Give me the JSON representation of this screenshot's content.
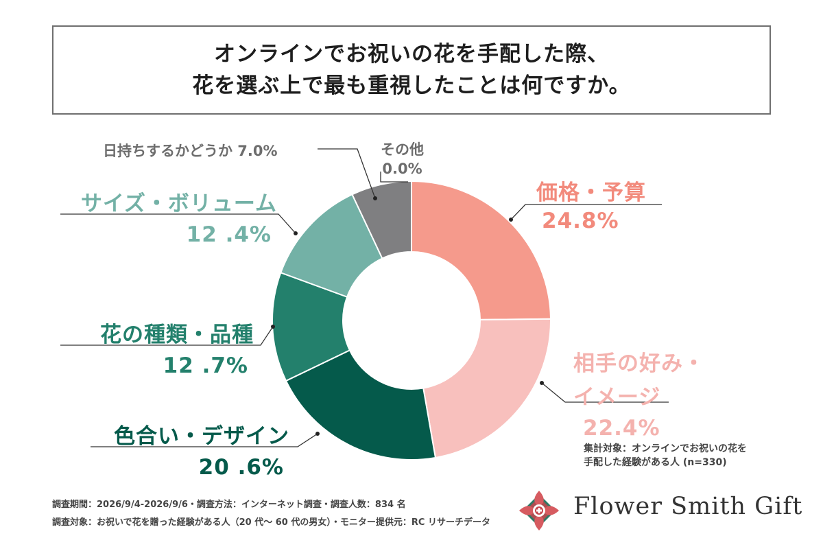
{
  "title": {
    "line1": "オンラインでお祝いの花を手配した際、",
    "line2": "花を選ぶ上で最も重視したことは何ですか。"
  },
  "chart_data": {
    "type": "pie",
    "variant": "donut",
    "categories": [
      "価格・予算",
      "相手の好み・イメージ",
      "色合い・デザイン",
      "花の種類・品種",
      "サイズ・ボリューム",
      "日持ちするかどうか",
      "その他"
    ],
    "values": [
      24.8,
      22.4,
      20.6,
      12.7,
      12.4,
      7.0,
      0.0
    ],
    "colors": [
      "#f59a8c",
      "#f8c0bd",
      "#055a4b",
      "#23806c",
      "#73b1a6",
      "#7f7f81",
      "#bbbbbb"
    ]
  },
  "labels": {
    "price_name": "価格・予算",
    "price_value": "24.8%",
    "pref_name_line1": "相手の好み・",
    "pref_name_line2": "イメージ",
    "pref_value": "22.4%",
    "design_name": "色合い・デザイン",
    "design_value": "20 .6%",
    "kind_name": "花の種類・品種",
    "kind_value": "12 .7%",
    "size_name": "サイズ・ボリューム",
    "size_value": "12 .4%",
    "life_label": "日持ちするかどうか 7.0%",
    "other_name": "その他",
    "other_value": "0.0%"
  },
  "note": {
    "line1": "集計対象：オンラインでお祝いの花を",
    "line2": "手配した経験がある人 (n=330)"
  },
  "footer": {
    "line1": "調査期間：2026/9/4-2026/9/6・調査方法：インターネット調査・調査人数：834 名",
    "line2": "調査対象：お祝いで花を贈った経験がある人（20 代～ 60 代の男女）・モニター提供元：RC リサーチデータ"
  },
  "brand": {
    "name": "Flower Smith Gift",
    "logo_icon": "flower-logo-icon"
  }
}
